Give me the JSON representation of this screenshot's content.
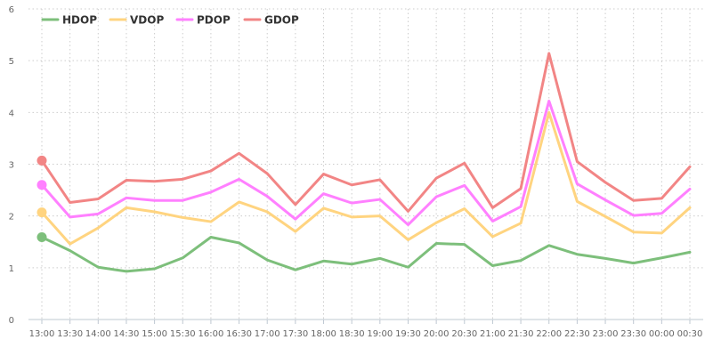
{
  "chart_data": {
    "type": "line",
    "title": "",
    "xlabel": "",
    "ylabel": "",
    "ylim": [
      0,
      6
    ],
    "yticks": [
      "0",
      "1",
      "2",
      "3",
      "4",
      "5",
      "6"
    ],
    "grid": true,
    "legend_position": "top-left",
    "categories": [
      "13:00",
      "13:30",
      "14:00",
      "14:30",
      "15:00",
      "15:30",
      "16:00",
      "16:30",
      "17:00",
      "17:30",
      "18:00",
      "18:30",
      "19:00",
      "19:30",
      "20:00",
      "20:30",
      "21:00",
      "21:30",
      "22:00",
      "22:30",
      "23:00",
      "23:30",
      "00:00",
      "00:30"
    ],
    "series": [
      {
        "name": "HDOP",
        "color": "#7dbf7b",
        "values": [
          1.59,
          1.33,
          1.01,
          0.93,
          0.98,
          1.19,
          1.59,
          1.48,
          1.15,
          0.96,
          1.13,
          1.07,
          1.18,
          1.01,
          1.47,
          1.45,
          1.04,
          1.14,
          1.43,
          1.26,
          1.18,
          1.09,
          1.19,
          1.3
        ]
      },
      {
        "name": "VDOP",
        "color": "#ffd480",
        "values": [
          2.07,
          1.46,
          1.77,
          2.16,
          2.08,
          1.97,
          1.89,
          2.27,
          2.08,
          1.7,
          2.15,
          1.98,
          2.0,
          1.54,
          1.87,
          2.14,
          1.6,
          1.86,
          4.0,
          2.28,
          1.99,
          1.69,
          1.67,
          2.16
        ]
      },
      {
        "name": "PDOP",
        "color": "#ff80ff",
        "values": [
          2.6,
          1.98,
          2.04,
          2.35,
          2.3,
          2.3,
          2.46,
          2.71,
          2.38,
          1.94,
          2.43,
          2.25,
          2.32,
          1.83,
          2.37,
          2.59,
          1.9,
          2.18,
          4.22,
          2.62,
          2.31,
          2.01,
          2.05,
          2.52
        ]
      },
      {
        "name": "GDOP",
        "color": "#f28585",
        "values": [
          3.07,
          2.26,
          2.33,
          2.69,
          2.67,
          2.71,
          2.87,
          3.21,
          2.82,
          2.22,
          2.81,
          2.6,
          2.7,
          2.09,
          2.73,
          3.02,
          2.16,
          2.53,
          5.14,
          3.05,
          2.65,
          2.3,
          2.34,
          2.95
        ]
      }
    ]
  }
}
